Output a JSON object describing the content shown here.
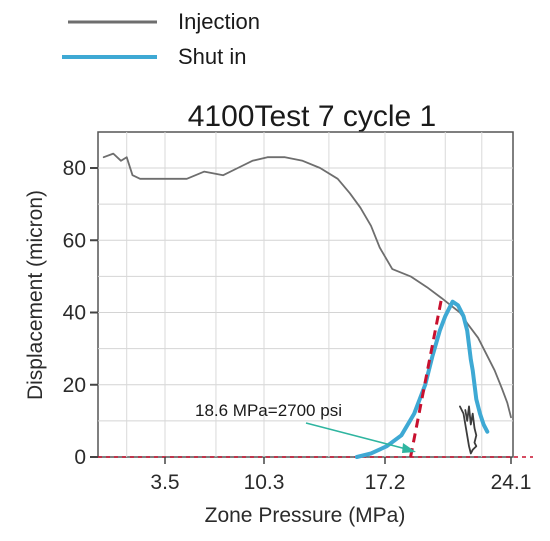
{
  "chart_data": {
    "type": "line",
    "title": "4100Test 7 cycle 1",
    "xlabel": "Zone Pressure (MPa)",
    "ylabel": "Displacement (micron)",
    "xlim": [
      0,
      24.1
    ],
    "ylim": [
      0,
      88
    ],
    "x_ticks": [
      3.5,
      10.3,
      17.2,
      24.1
    ],
    "x_tick_labels": [
      "3.5",
      "10.3",
      "17.2",
      "24.1"
    ],
    "y_ticks": [
      0,
      20,
      40,
      60,
      80
    ],
    "y_tick_labels": [
      "0",
      "20",
      "40",
      "60",
      "80"
    ],
    "grid": true,
    "legend_position": "top-left",
    "series": [
      {
        "name": "Injection",
        "color": "#6e6e6e",
        "x": [
          0.3,
          0.8,
          1.2,
          1.5,
          1.8,
          2.2,
          3.0,
          5.0,
          6.2,
          7.5,
          8.5,
          9.5,
          10.5,
          11.5,
          12.5,
          13.5,
          14.5,
          15.2,
          15.8,
          16.4,
          16.9,
          17.6,
          18.6,
          19.5,
          20.3,
          20.8,
          21.3,
          21.7,
          22.3,
          22.7,
          23.2,
          23.6,
          23.9,
          24.1
        ],
        "y": [
          83,
          84,
          82,
          83,
          78,
          77,
          77,
          77,
          79,
          78,
          80,
          82,
          83,
          83,
          82,
          80,
          77,
          73,
          69,
          64,
          58,
          52,
          50,
          47,
          44,
          42,
          40,
          37,
          33,
          29,
          24,
          19,
          15,
          11
        ]
      },
      {
        "name": "Shut in",
        "color": "#3ea9d4",
        "x": [
          15.6,
          16.4,
          17.3,
          18.1,
          18.8,
          19.4,
          19.8,
          20.2,
          20.5,
          20.7,
          20.9,
          21.2,
          21.5,
          21.7,
          21.8,
          21.9,
          22.0,
          22.1,
          22.2,
          22.4,
          22.6,
          22.8
        ],
        "y": [
          0,
          1,
          3,
          6,
          12,
          20,
          28,
          35,
          39,
          41,
          43,
          42,
          39,
          35,
          31,
          27,
          24,
          20,
          16,
          12,
          9,
          7
        ]
      },
      {
        "color": "#3c3c3c",
        "x": [
          21.6,
          21.7,
          21.8,
          21.9,
          22.0,
          22.1,
          22.2,
          22.1,
          22.2,
          22.0,
          21.9,
          21.8,
          21.5,
          21.3
        ],
        "y": [
          13,
          10,
          14,
          9,
          12,
          8,
          6,
          4,
          3,
          2,
          1,
          3,
          12,
          14
        ]
      }
    ],
    "fit_line": {
      "color": "#c8102e",
      "x": [
        18.6,
        20.3
      ],
      "y": [
        0,
        44
      ]
    },
    "baseline": {
      "color": "#c8102e",
      "y": 0
    },
    "annotation": {
      "text": "18.6 MPa=2700 psi",
      "x": 18.6,
      "y": 0
    }
  }
}
